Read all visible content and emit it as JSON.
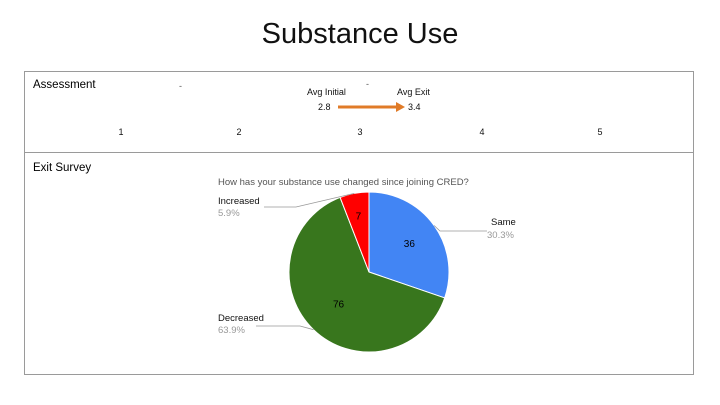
{
  "slide": {
    "title": "Substance Use"
  },
  "assessment": {
    "section_label": "Assessment",
    "avg_initial_label": "Avg Initial",
    "avg_initial_value": "2.8",
    "avg_exit_label": "Avg Exit",
    "avg_exit_value": "3.4",
    "scale_ticks": [
      "1",
      "2",
      "3",
      "4",
      "5"
    ],
    "arrow_color": "#e07b28",
    "dash_marks": [
      "-",
      "-"
    ]
  },
  "exit_survey": {
    "section_label": "Exit Survey"
  },
  "chart_data": {
    "type": "pie",
    "title": "How has your substance use changed since joining CRED?",
    "slices": [
      {
        "label": "Same",
        "value": 36,
        "percent": "30.3%",
        "color": "#4285f4"
      },
      {
        "label": "Decreased",
        "value": 76,
        "percent": "63.9%",
        "color": "#38761d"
      },
      {
        "label": "Increased",
        "value": 7,
        "percent": "5.9%",
        "color": "#ff0000"
      }
    ],
    "start_angle_deg": 0,
    "direction": "clockwise",
    "data_labels": true,
    "legend": "callouts"
  }
}
